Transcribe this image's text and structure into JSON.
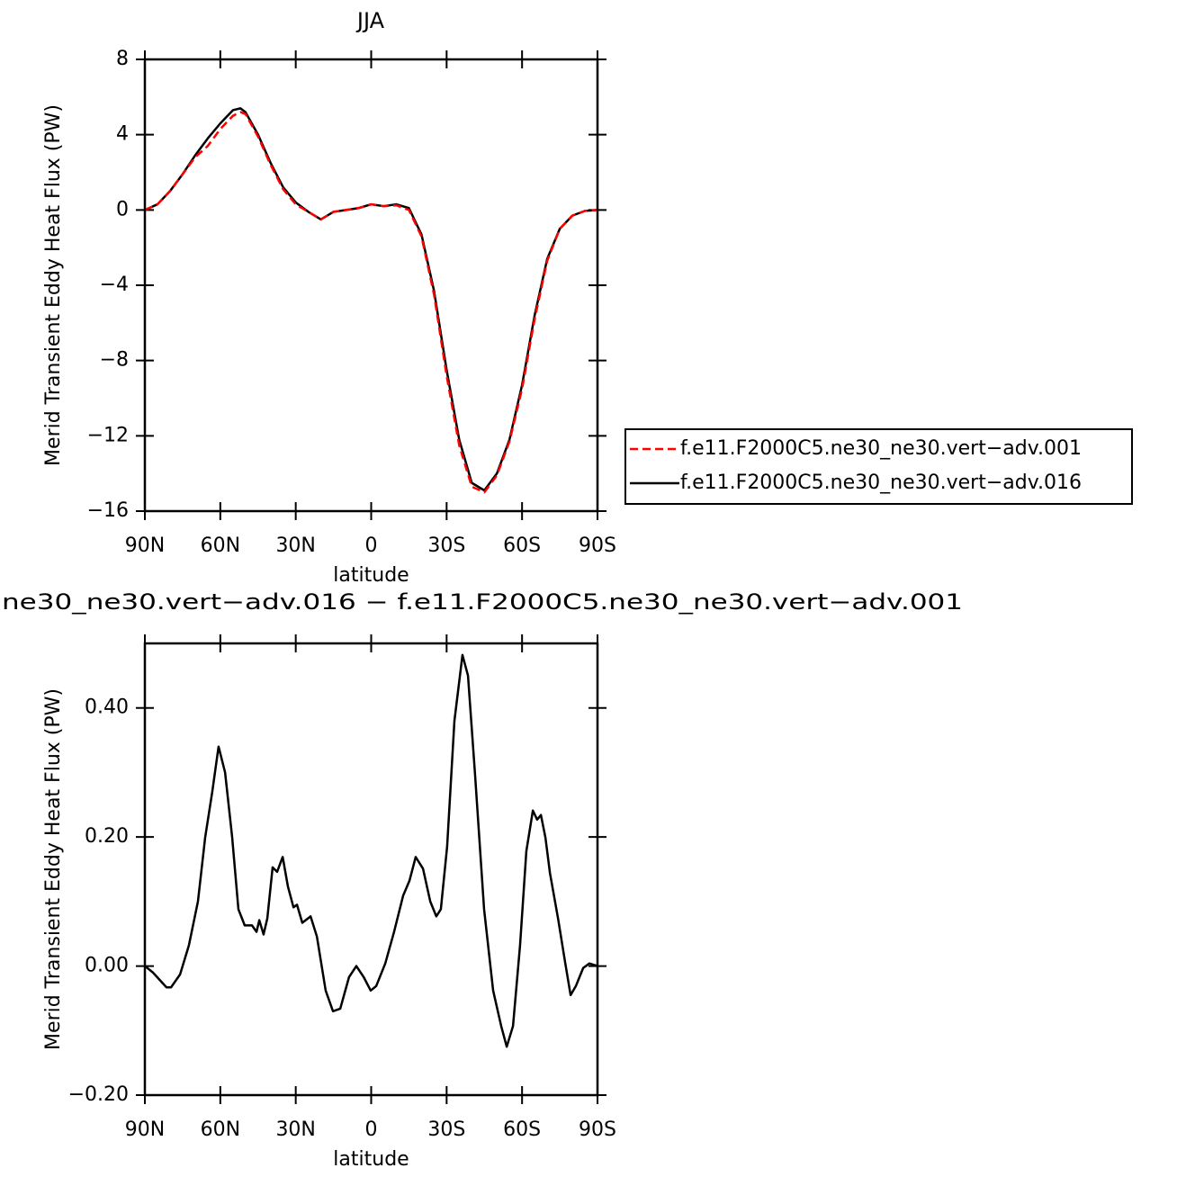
{
  "chart_data": [
    {
      "type": "line",
      "title": "JJA",
      "xlabel": "latitude",
      "ylabel": "Merid Transient Eddy Heat Flux (PW)",
      "x": [
        90,
        85,
        80,
        75,
        70,
        65,
        60,
        55,
        52,
        50,
        45,
        40,
        35,
        30,
        25,
        20,
        15,
        10,
        5,
        0,
        -5,
        -10,
        -15,
        -20,
        -25,
        -30,
        -35,
        -40,
        -45,
        -50,
        -55,
        -60,
        -65,
        -70,
        -75,
        -80,
        -85,
        -90
      ],
      "series": [
        {
          "name": "f.e11.F2000C5.ne30_ne30.vert−adv.001",
          "color": "#ff0000",
          "dashed": true,
          "values": [
            0,
            0.3,
            1.0,
            1.9,
            2.8,
            3.4,
            4.3,
            5.0,
            5.2,
            5.1,
            3.9,
            2.4,
            1.1,
            0.3,
            -0.1,
            -0.5,
            -0.1,
            0.0,
            0.1,
            0.3,
            0.2,
            0.25,
            0.0,
            -1.4,
            -4.5,
            -8.8,
            -12.5,
            -14.7,
            -15.0,
            -14.1,
            -12.3,
            -9.5,
            -5.8,
            -2.7,
            -1.0,
            -0.3,
            -0.05,
            0
          ]
        },
        {
          "name": "f.e11.F2000C5.ne30_ne30.vert−adv.016",
          "color": "#000000",
          "dashed": false,
          "values": [
            0,
            0.3,
            1.0,
            1.9,
            2.9,
            3.8,
            4.6,
            5.3,
            5.4,
            5.2,
            4.0,
            2.5,
            1.2,
            0.4,
            -0.1,
            -0.5,
            -0.1,
            0.0,
            0.1,
            0.3,
            0.2,
            0.3,
            0.1,
            -1.3,
            -4.3,
            -8.5,
            -12.2,
            -14.5,
            -14.9,
            -14.0,
            -12.2,
            -9.3,
            -5.6,
            -2.6,
            -1.0,
            -0.3,
            -0.05,
            0
          ]
        }
      ],
      "xlim": [
        90,
        -90
      ],
      "xticks": [
        {
          "value": 90,
          "label": "90N"
        },
        {
          "value": 60,
          "label": "60N"
        },
        {
          "value": 30,
          "label": "30N"
        },
        0,
        {
          "value": -30,
          "label": "30S"
        },
        {
          "value": -60,
          "label": "60S"
        },
        {
          "value": -90,
          "label": "90S"
        }
      ],
      "ylim": [
        -16,
        8
      ],
      "yticks": [
        {
          "value": -16,
          "label": "−16"
        },
        {
          "value": -12,
          "label": "−12"
        },
        {
          "value": -8,
          "label": "−8"
        },
        {
          "value": -4,
          "label": "−4"
        },
        0,
        4,
        8
      ],
      "legend": "right"
    },
    {
      "type": "line",
      "title": "ne30_ne30.vert−adv.016 − f.e11.F2000C5.ne30_ne30.vert−adv.001",
      "xlabel": "latitude",
      "ylabel": "Merid Transient Eddy Heat Flux (PW)",
      "x": [
        90,
        86.8,
        81.4,
        79.6,
        76,
        72.5,
        68.9,
        66,
        63.2,
        60.7,
        58.1,
        55.3,
        52.8,
        50.3,
        47.4,
        45.6,
        44.5,
        42.8,
        41.3,
        39.2,
        37.4,
        35.2,
        33.1,
        30.9,
        29.5,
        27.4,
        24.1,
        21.6,
        18.1,
        15.2,
        12.3,
        8.8,
        5.9,
        3.0,
        0.2,
        -2.0,
        -5.6,
        -9.1,
        -12.7,
        -15.2,
        -17.7,
        -20.6,
        -23.5,
        -25.9,
        -27.7,
        -30.2,
        -33.1,
        -36.3,
        -38.5,
        -41.3,
        -44.9,
        -48.5,
        -51.7,
        -53.9,
        -56.4,
        -59.2,
        -61.7,
        -64.3,
        -66.0,
        -67.5,
        -69.3,
        -71.1,
        -74.3,
        -77.2,
        -79.3,
        -81.4,
        -84.3,
        -86.8,
        -90
      ],
      "color": "#000000",
      "values": [
        0,
        -0.01,
        -0.033,
        -0.033,
        -0.013,
        0.032,
        0.1,
        0.2,
        0.27,
        0.34,
        0.3,
        0.2,
        0.088,
        0.063,
        0.063,
        0.053,
        0.071,
        0.049,
        0.074,
        0.153,
        0.146,
        0.169,
        0.123,
        0.091,
        0.095,
        0.067,
        0.077,
        0.046,
        -0.038,
        -0.07,
        -0.066,
        -0.017,
        0,
        -0.017,
        -0.038,
        -0.031,
        0.004,
        0.053,
        0.109,
        0.132,
        0.169,
        0.151,
        0.1,
        0.077,
        0.088,
        0.185,
        0.38,
        0.482,
        0.45,
        0.297,
        0.088,
        -0.038,
        -0.093,
        -0.125,
        -0.093,
        0.032,
        0.178,
        0.241,
        0.227,
        0.234,
        0.199,
        0.144,
        0.074,
        0.004,
        -0.045,
        -0.031,
        -0.003,
        0.004,
        0
      ],
      "xlim": [
        90,
        -90
      ],
      "xticks": [
        {
          "value": 90,
          "label": "90N"
        },
        {
          "value": 60,
          "label": "60N"
        },
        {
          "value": 30,
          "label": "30N"
        },
        0,
        {
          "value": -30,
          "label": "30S"
        },
        {
          "value": -60,
          "label": "60S"
        },
        {
          "value": -90,
          "label": "90S"
        }
      ],
      "ylim": [
        -0.2,
        0.5
      ],
      "yticks": [
        {
          "value": -0.2,
          "label": "−0.20"
        },
        {
          "value": 0,
          "label": "0.00"
        },
        {
          "value": 0.2,
          "label": "0.20"
        },
        {
          "value": 0.4,
          "label": "0.40"
        }
      ]
    }
  ]
}
